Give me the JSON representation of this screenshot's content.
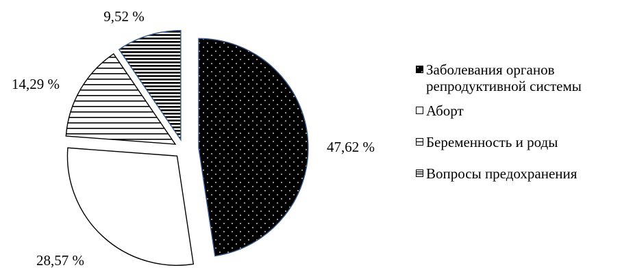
{
  "chart_data": {
    "type": "pie",
    "categories": [
      "Заболевания органов репродуктивной системы",
      "Аборт",
      "Беременность и роды",
      "Вопросы предохранения"
    ],
    "values": [
      47.62,
      28.57,
      14.29,
      9.52
    ],
    "data_labels": [
      "47,62 %",
      "28,57 %",
      "14,29 %",
      "9,52 %"
    ],
    "exploded": true,
    "fills": [
      "dotted-black",
      "white",
      "horizontal-lines",
      "dense-horizontal-lines"
    ],
    "colors": {
      "dark_fill": "#000000",
      "outline": "#000000",
      "highlight_outline": "#3a5a8c",
      "background": "#ffffff"
    },
    "legend_position": "right"
  }
}
